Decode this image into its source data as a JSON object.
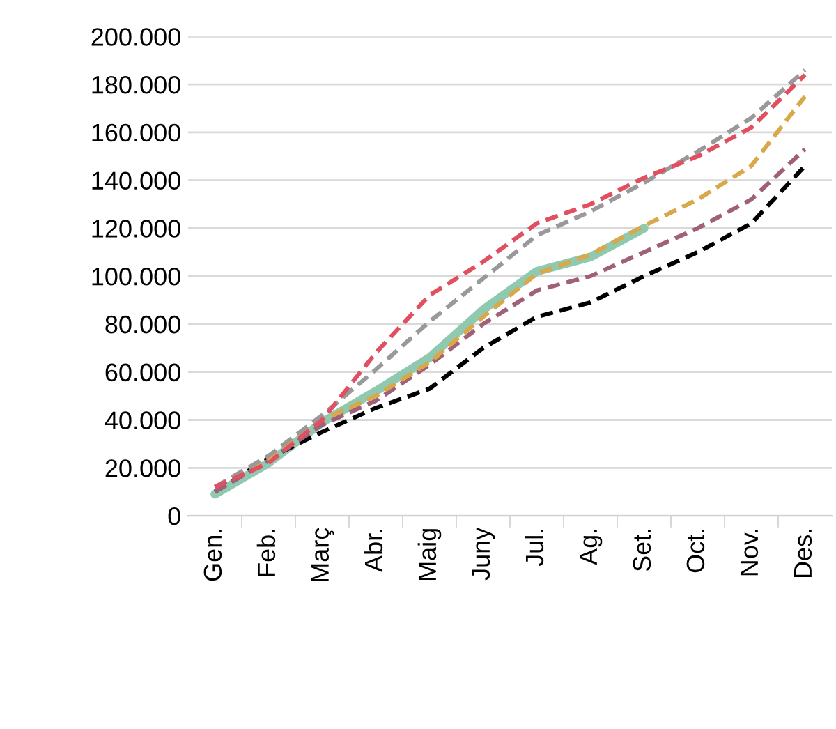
{
  "chart_data": {
    "type": "line",
    "categories": [
      "Gen.",
      "Feb.",
      "Març",
      "Abr.",
      "Maig",
      "Juny",
      "Jul.",
      "Ag.",
      "Set.",
      "Oct.",
      "Nov.",
      "Des."
    ],
    "series": [
      {
        "color": "#000000",
        "line_style": "dashed",
        "values": [
          10000,
          24000,
          35000,
          45000,
          53000,
          70000,
          83000,
          89000,
          100000,
          110000,
          122000,
          146000
        ]
      },
      {
        "color": "#a0607a",
        "line_style": "dashed",
        "values": [
          10000,
          23000,
          38000,
          48000,
          63000,
          80000,
          94000,
          100000,
          110000,
          120000,
          132000,
          153000
        ]
      },
      {
        "color": "#d9a84a",
        "line_style": "dashed",
        "values": [
          12000,
          24000,
          40000,
          50000,
          64000,
          83000,
          101000,
          109000,
          121000,
          132000,
          146000,
          175000
        ]
      },
      {
        "color": "#999999",
        "line_style": "dashed",
        "values": [
          12000,
          25000,
          42000,
          61000,
          81000,
          99000,
          117000,
          127000,
          139000,
          152000,
          166000,
          186000
        ]
      },
      {
        "color": "#e05060",
        "line_style": "dashed",
        "values": [
          12000,
          22000,
          40000,
          68000,
          92000,
          106000,
          122000,
          130000,
          141000,
          150000,
          162000,
          184000
        ]
      },
      {
        "color": "#8ec9b0",
        "line_style": "solid",
        "values": [
          9000,
          22000,
          39000,
          52000,
          66000,
          86000,
          102000,
          108000,
          120000,
          null,
          null,
          null
        ]
      }
    ],
    "ylim": [
      0,
      200000
    ],
    "yticks": [
      0,
      {
        "value": 20000,
        "label": "20.000"
      },
      {
        "value": 40000,
        "label": "40.000"
      },
      {
        "value": 60000,
        "label": "60.000"
      },
      {
        "value": 80000,
        "label": "80.000"
      },
      {
        "value": 100000,
        "label": "100.000"
      },
      {
        "value": 120000,
        "label": "120.000"
      },
      {
        "value": 140000,
        "label": "140.000"
      },
      {
        "value": 160000,
        "label": "160.000"
      },
      {
        "value": 180000,
        "label": "180.000"
      },
      {
        "value": 200000,
        "label": "200.000"
      }
    ],
    "grid": "y",
    "marker": "none"
  }
}
